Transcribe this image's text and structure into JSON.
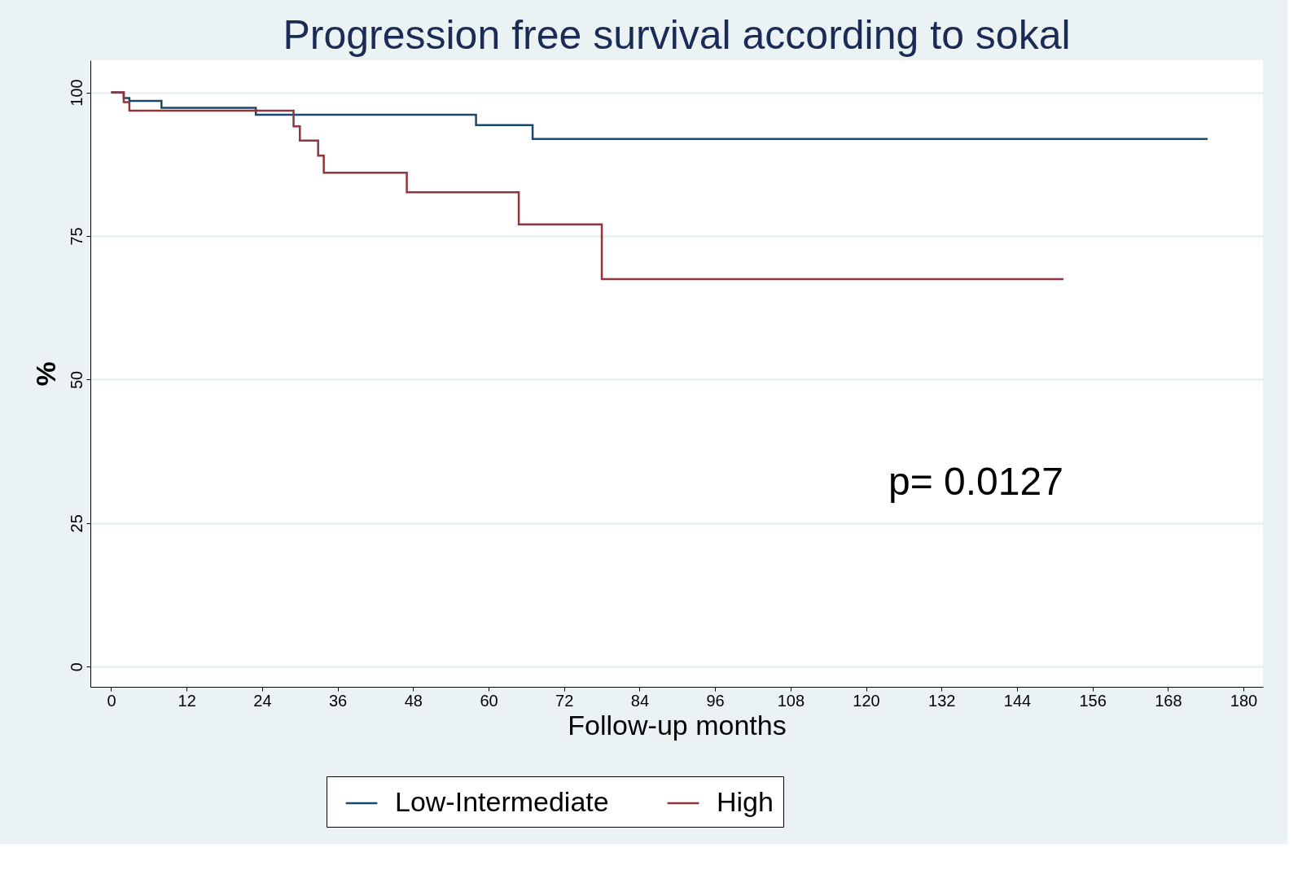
{
  "chart_data": {
    "type": "step",
    "title": "Progression free survival according to sokal",
    "xlabel": "Follow-up months",
    "ylabel": "%",
    "series": [
      {
        "name": "Low-Intermediate",
        "color": "#1a476f",
        "x": [
          0,
          2,
          2.9,
          8,
          23,
          58,
          67,
          174.3
        ],
        "values": [
          100,
          99,
          98.5,
          97.3,
          96.1,
          94.3,
          91.9,
          91.9
        ]
      },
      {
        "name": "High",
        "color": "#90353b",
        "x": [
          0,
          2,
          2.9,
          29,
          30,
          32.9,
          33.8,
          47,
          64.8,
          78,
          151.4
        ],
        "values": [
          100,
          98.3,
          96.8,
          94.1,
          91.6,
          89,
          86,
          82.6,
          77,
          67.5,
          67.5
        ]
      }
    ],
    "xlim": [
      -3.3,
      183.1
    ],
    "xticks": [
      0,
      12,
      24,
      36,
      48,
      60,
      72,
      84,
      96,
      108,
      120,
      132,
      144,
      156,
      168,
      180
    ],
    "ylim": [
      -3.5,
      105.6
    ],
    "yticks": [
      0,
      25,
      50,
      75,
      100
    ],
    "grid": "y",
    "legend": "bottom",
    "line_style": "solid",
    "marker": "none",
    "annotations": [
      "p= 0.0127"
    ]
  }
}
